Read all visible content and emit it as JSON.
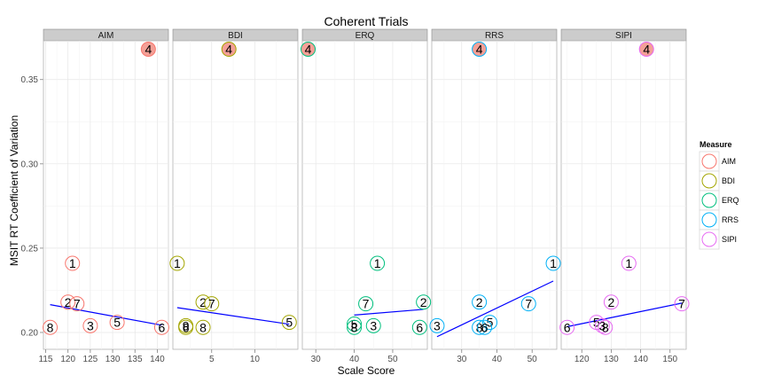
{
  "chart_data": {
    "type": "scatter",
    "title": "Coherent Trials",
    "xlabel": "Scale Score",
    "ylabel": "MSIT RT Coefficient of Variation",
    "ylim": [
      0.19,
      0.373
    ],
    "yticks": [
      0.2,
      0.25,
      0.3,
      0.35
    ],
    "ytick_labels": [
      "0.20",
      "0.25",
      "0.30",
      "0.35"
    ],
    "grid": true,
    "legend": {
      "title": "Measure",
      "placement": "right",
      "entries": [
        {
          "name": "AIM",
          "color": "#F8766D"
        },
        {
          "name": "BDI",
          "color": "#A3A500"
        },
        {
          "name": "ERQ",
          "color": "#00BF7D"
        },
        {
          "name": "RRS",
          "color": "#00B0F6"
        },
        {
          "name": "SIPI",
          "color": "#E76BF3"
        }
      ]
    },
    "outlier_fill": "#F4A097",
    "fit_line_color": "#0000FF",
    "panels": [
      {
        "name": "AIM",
        "color": "#F8766D",
        "xlim": [
          114.5,
          142.5
        ],
        "xticks": [
          115,
          120,
          125,
          130,
          135,
          140
        ],
        "xtick_labels": [
          "115",
          "120",
          "125",
          "130",
          "135",
          "140"
        ],
        "points": [
          {
            "label": "1",
            "x": 121,
            "y": 0.241
          },
          {
            "label": "2",
            "x": 120,
            "y": 0.218
          },
          {
            "label": "7",
            "x": 122,
            "y": 0.217
          },
          {
            "label": "3",
            "x": 125,
            "y": 0.204
          },
          {
            "label": "5",
            "x": 131,
            "y": 0.206
          },
          {
            "label": "8",
            "x": 116,
            "y": 0.203
          },
          {
            "label": "6",
            "x": 141,
            "y": 0.203
          },
          {
            "label": "4",
            "x": 138,
            "y": 0.368,
            "outlier": true
          }
        ],
        "fit": {
          "x": [
            116,
            141
          ],
          "y": [
            0.2165,
            0.2043
          ]
        }
      },
      {
        "name": "BDI",
        "color": "#A3A500",
        "xlim": [
          0.5,
          15.0
        ],
        "xticks": [
          5,
          10
        ],
        "xtick_labels": [
          "5",
          "10"
        ],
        "points": [
          {
            "label": "1",
            "x": 1,
            "y": 0.241
          },
          {
            "label": "2",
            "x": 4,
            "y": 0.218
          },
          {
            "label": "7",
            "x": 5,
            "y": 0.217
          },
          {
            "label": "9",
            "x": 2,
            "y": 0.204
          },
          {
            "label": "6",
            "x": 2,
            "y": 0.203
          },
          {
            "label": "8",
            "x": 4,
            "y": 0.203
          },
          {
            "label": "5",
            "x": 14,
            "y": 0.206
          },
          {
            "label": "4",
            "x": 7,
            "y": 0.368,
            "outlier": true
          }
        ],
        "fit": {
          "x": [
            1,
            14
          ],
          "y": [
            0.2147,
            0.2049
          ]
        }
      },
      {
        "name": "ERQ",
        "color": "#00BF7D",
        "xlim": [
          26.5,
          59.0
        ],
        "xticks": [
          30,
          40,
          50
        ],
        "xtick_labels": [
          "30",
          "40",
          "50"
        ],
        "points": [
          {
            "label": "1",
            "x": 46,
            "y": 0.241
          },
          {
            "label": "7",
            "x": 43,
            "y": 0.217
          },
          {
            "label": "2",
            "x": 58,
            "y": 0.218
          },
          {
            "label": "5",
            "x": 40,
            "y": 0.205
          },
          {
            "label": "8",
            "x": 40,
            "y": 0.203
          },
          {
            "label": "3",
            "x": 45,
            "y": 0.204
          },
          {
            "label": "6",
            "x": 57,
            "y": 0.203
          },
          {
            "label": "4",
            "x": 28,
            "y": 0.368,
            "outlier": true
          }
        ],
        "fit": {
          "x": [
            40,
            58
          ],
          "y": [
            0.2103,
            0.2137
          ]
        }
      },
      {
        "name": "RRS",
        "color": "#00B0F6",
        "xlim": [
          21.5,
          57.0
        ],
        "xticks": [
          30,
          40,
          50
        ],
        "xtick_labels": [
          "30",
          "40",
          "50"
        ],
        "points": [
          {
            "label": "1",
            "x": 56,
            "y": 0.241
          },
          {
            "label": "2",
            "x": 35,
            "y": 0.218
          },
          {
            "label": "7",
            "x": 49,
            "y": 0.217
          },
          {
            "label": "3",
            "x": 23,
            "y": 0.204
          },
          {
            "label": "5",
            "x": 38,
            "y": 0.206
          },
          {
            "label": "8",
            "x": 35,
            "y": 0.203
          },
          {
            "label": "6",
            "x": 36.5,
            "y": 0.203
          },
          {
            "label": "4",
            "x": 35,
            "y": 0.368,
            "outlier": true
          }
        ],
        "fit": {
          "x": [
            23,
            56
          ],
          "y": [
            0.1975,
            0.2305
          ]
        }
      },
      {
        "name": "SIPI",
        "color": "#E76BF3",
        "xlim": [
          113.0,
          155.5
        ],
        "xticks": [
          120,
          130,
          140,
          150
        ],
        "xtick_labels": [
          "120",
          "130",
          "140",
          "150"
        ],
        "points": [
          {
            "label": "1",
            "x": 136,
            "y": 0.241
          },
          {
            "label": "2",
            "x": 130,
            "y": 0.218
          },
          {
            "label": "7",
            "x": 154,
            "y": 0.217
          },
          {
            "label": "5",
            "x": 125,
            "y": 0.206
          },
          {
            "label": "3",
            "x": 127,
            "y": 0.204
          },
          {
            "label": "8",
            "x": 128,
            "y": 0.203
          },
          {
            "label": "6",
            "x": 115,
            "y": 0.203
          },
          {
            "label": "4",
            "x": 142,
            "y": 0.368,
            "outlier": true
          }
        ],
        "fit": {
          "x": [
            115,
            154
          ],
          "y": [
            0.2034,
            0.2174
          ]
        }
      }
    ]
  }
}
